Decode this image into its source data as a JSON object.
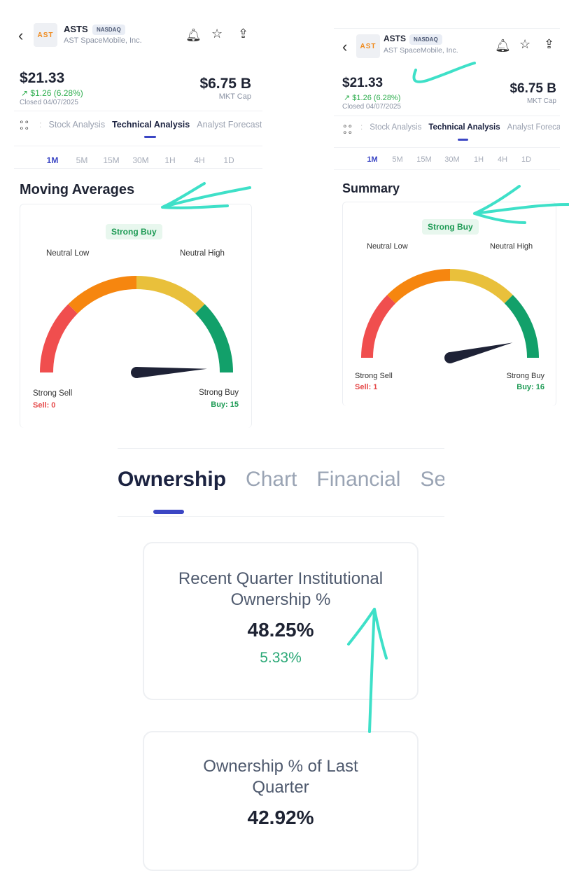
{
  "screens": [
    {
      "ticker": "ASTS",
      "exchange": "NASDAQ",
      "company": "AST SpaceMobile, Inc.",
      "logo_text": "AST",
      "price": "$21.33",
      "change": "$1.26 (6.28%)",
      "closed": "Closed 04/07/2025",
      "mkt_cap": "$6.75 B",
      "mkt_cap_label": "MKT Cap",
      "tabs": [
        "Stock Analysis",
        "Technical Analysis",
        "Analyst Forecast"
      ],
      "active_tab": "Technical Analysis",
      "timeframes": [
        "1M",
        "5M",
        "15M",
        "30M",
        "1H",
        "4H",
        "1D"
      ],
      "active_timeframe": "1M",
      "section_title": "Moving Averages",
      "rating": "Strong Buy",
      "neutral_low": "Neutral Low",
      "neutral_high": "Neutral High",
      "strong_sell": "Strong Sell",
      "strong_buy": "Strong Buy",
      "sell": "Sell: 0",
      "buy": "Buy: 15"
    },
    {
      "ticker": "ASTS",
      "exchange": "NASDAQ",
      "company": "AST SpaceMobile, Inc.",
      "logo_text": "AST",
      "price": "$21.33",
      "change": "$1.26 (6.28%)",
      "closed": "Closed 04/07/2025",
      "mkt_cap": "$6.75 B",
      "mkt_cap_label": "MKT Cap",
      "tabs": [
        "Stock Analysis",
        "Technical Analysis",
        "Analyst Forecas"
      ],
      "active_tab": "Technical Analysis",
      "timeframes": [
        "1M",
        "5M",
        "15M",
        "30M",
        "1H",
        "4H",
        "1D"
      ],
      "active_timeframe": "1M",
      "section_title": "Summary",
      "rating": "Strong Buy",
      "neutral_low": "Neutral Low",
      "neutral_high": "Neutral High",
      "strong_sell": "Strong Sell",
      "strong_buy": "Strong Buy",
      "sell": "Sell: 1",
      "buy": "Buy: 16"
    }
  ],
  "gauge_colors": [
    "#f04e4e",
    "#f6860f",
    "#e9c03b",
    "#12a06a"
  ],
  "annotation_color": "#3ee0c8",
  "ownership": {
    "tabs": [
      "Ownership",
      "Chart",
      "Financial",
      "Se"
    ],
    "active_tab": "Ownership",
    "cards": [
      {
        "title_1": "Recent Quarter Institutional",
        "title_2": "Ownership %",
        "value": "48.25%",
        "change": "5.33%"
      },
      {
        "title_1": "Ownership % of Last",
        "title_2": "Quarter",
        "value": "42.92%"
      }
    ]
  }
}
